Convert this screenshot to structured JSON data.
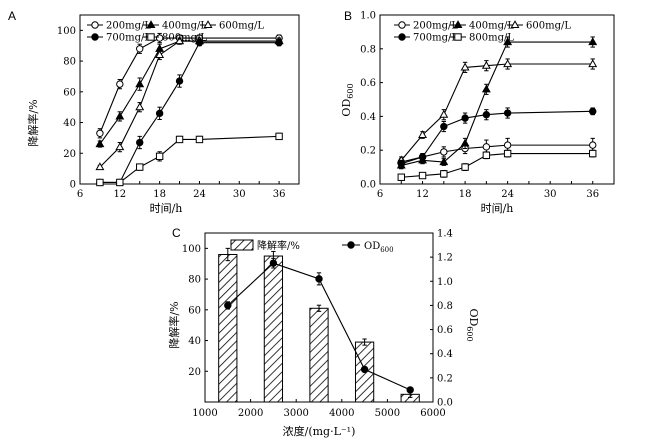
{
  "chart_data": [
    {
      "panel": "A",
      "type": "line",
      "title": "",
      "xlabel": "时间/h",
      "ylabel": "降解率/%",
      "xlim": [
        6,
        39
      ],
      "ylim": [
        0,
        110
      ],
      "xticks": [
        6,
        9,
        12,
        15,
        18,
        21,
        24,
        27,
        30,
        33,
        36
      ],
      "xtick_labels": [
        "6",
        "",
        "12",
        "",
        "18",
        "",
        "24",
        "",
        "30",
        "",
        "36"
      ],
      "yticks": [
        0,
        20,
        40,
        60,
        80,
        100
      ],
      "x": [
        9,
        12,
        15,
        18,
        21,
        24,
        36
      ],
      "series": [
        {
          "name": "200mg/L",
          "marker": "open-circle",
          "values": [
            33,
            65,
            88,
            95,
            95,
            95,
            95
          ],
          "errors": [
            3,
            3,
            3,
            3,
            2,
            2,
            2
          ]
        },
        {
          "name": "400mg/L",
          "marker": "filled-triangle",
          "values": [
            26,
            44,
            65,
            88,
            93,
            93,
            93
          ],
          "errors": [
            2,
            3,
            4,
            3,
            2,
            2,
            2
          ]
        },
        {
          "name": "600mg/L",
          "marker": "open-triangle",
          "values": [
            11,
            24,
            50,
            84,
            93,
            93,
            93
          ],
          "errors": [
            1,
            3,
            3,
            3,
            2,
            2,
            2
          ]
        },
        {
          "name": "700mg/L",
          "marker": "filled-circle",
          "values": [
            1,
            1,
            27,
            46,
            67,
            92,
            92
          ],
          "errors": [
            1,
            1,
            4,
            4,
            4,
            2,
            2
          ]
        },
        {
          "name": "800mg/L",
          "marker": "open-square",
          "values": [
            1,
            1,
            11,
            18,
            29,
            29,
            31
          ],
          "errors": [
            1,
            1,
            2,
            3,
            2,
            2,
            2
          ]
        }
      ]
    },
    {
      "panel": "B",
      "type": "line",
      "title": "",
      "xlabel": "时间/h",
      "ylabel": "OD600",
      "ylabel_main": "OD",
      "ylabel_sub": "600",
      "xlim": [
        6,
        39
      ],
      "ylim": [
        0,
        1.0
      ],
      "xticks": [
        6,
        9,
        12,
        15,
        18,
        21,
        24,
        27,
        30,
        33,
        36
      ],
      "xtick_labels": [
        "6",
        "",
        "12",
        "",
        "18",
        "",
        "24",
        "",
        "30",
        "",
        "36"
      ],
      "yticks": [
        0,
        0.2,
        0.4,
        0.6,
        0.8,
        1.0
      ],
      "ytick_labels": [
        "0.0",
        "0.2",
        "0.4",
        "0.6",
        "0.8",
        "1.0"
      ],
      "x": [
        9,
        12,
        15,
        18,
        21,
        24,
        36
      ],
      "series": [
        {
          "name": "200mg/L",
          "marker": "open-circle",
          "values": [
            0.13,
            0.16,
            0.19,
            0.21,
            0.22,
            0.23,
            0.23
          ],
          "errors": [
            0.02,
            0.02,
            0.03,
            0.03,
            0.04,
            0.04,
            0.04
          ]
        },
        {
          "name": "400mg/L",
          "marker": "filled-triangle",
          "values": [
            0.11,
            0.14,
            0.13,
            0.24,
            0.56,
            0.84,
            0.84
          ],
          "errors": [
            0.02,
            0.02,
            0.02,
            0.03,
            0.03,
            0.03,
            0.03
          ]
        },
        {
          "name": "600mg/L",
          "marker": "open-triangle",
          "values": [
            0.14,
            0.29,
            0.41,
            0.69,
            0.7,
            0.71,
            0.71
          ],
          "errors": [
            0.02,
            0.02,
            0.03,
            0.03,
            0.03,
            0.03,
            0.03
          ]
        },
        {
          "name": "700mg/L",
          "marker": "filled-circle",
          "values": [
            0.12,
            0.16,
            0.34,
            0.39,
            0.41,
            0.42,
            0.43
          ],
          "errors": [
            0.02,
            0.02,
            0.03,
            0.03,
            0.03,
            0.03,
            0.02
          ]
        },
        {
          "name": "800mg/L",
          "marker": "open-square",
          "values": [
            0.04,
            0.05,
            0.06,
            0.1,
            0.17,
            0.18,
            0.18
          ],
          "errors": [
            0.01,
            0.01,
            0.02,
            0.02,
            0.02,
            0.02,
            0.02
          ]
        }
      ]
    },
    {
      "panel": "C",
      "type": "bar",
      "title": "",
      "xlabel": "浓度/(mg·L⁻¹)",
      "ylabel": "降解率/%",
      "y2label": "OD600",
      "y2label_main": "OD",
      "y2label_sub": "600",
      "xlim": [
        1000,
        6000
      ],
      "ylim": [
        0,
        110
      ],
      "y2lim": [
        0,
        1.4
      ],
      "xticks": [
        1000,
        2000,
        3000,
        4000,
        5000,
        6000
      ],
      "yticks": [
        20,
        40,
        60,
        80,
        100
      ],
      "y2ticks": [
        0,
        0.2,
        0.4,
        0.6,
        0.8,
        1.0,
        1.2,
        1.4
      ],
      "y2tick_labels": [
        "0.0",
        "0.2",
        "0.4",
        "0.6",
        "0.8",
        "1.0",
        "1.2",
        "1.4"
      ],
      "categories": [
        1500,
        2500,
        3500,
        4500,
        5500
      ],
      "series": [
        {
          "name": "降解率/%",
          "kind": "bar",
          "axis": "left",
          "values": [
            96,
            95,
            61,
            39,
            5
          ],
          "errors": [
            4,
            3,
            2,
            2,
            2
          ]
        },
        {
          "name": "OD600",
          "name_main": "OD",
          "name_sub": "600",
          "kind": "line",
          "axis": "right",
          "values": [
            0.8,
            1.15,
            1.02,
            0.27,
            0.1
          ],
          "errors": [
            0.03,
            0.04,
            0.05,
            0.02,
            0.01
          ]
        }
      ]
    }
  ]
}
